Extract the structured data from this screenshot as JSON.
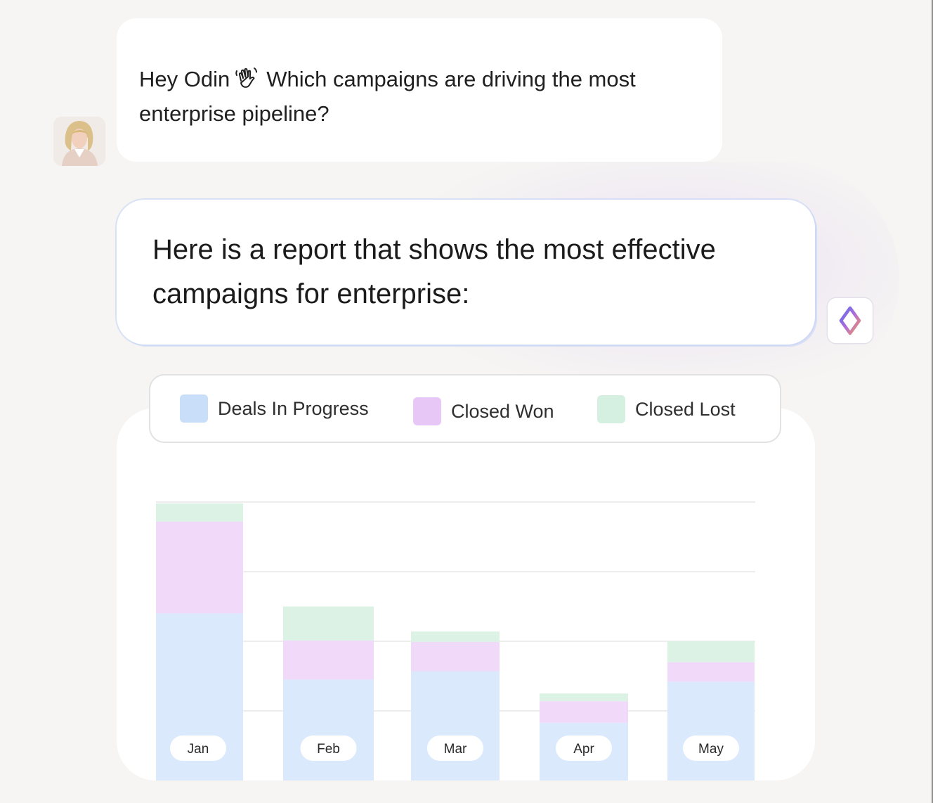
{
  "user_message": {
    "text_before": "Hey Odin",
    "text_after": "Which campaigns are driving the most enterprise pipeline?",
    "emoji_icon": "waving-hand-icon"
  },
  "assistant_message": {
    "text": "Here is a report that shows the most effective campaigns for enterprise:",
    "icon": "odin-diamond-logo-icon"
  },
  "chart_data": {
    "type": "bar",
    "stacked": true,
    "categories": [
      "Jan",
      "Feb",
      "Mar",
      "Apr",
      "May"
    ],
    "series": [
      {
        "name": "Deals In Progress",
        "color": "#dae9fb",
        "values": [
          2.4,
          1.45,
          1.57,
          0.83,
          1.42
        ]
      },
      {
        "name": "Closed Won",
        "color": "#f1d9fa",
        "values": [
          1.32,
          0.56,
          0.42,
          0.31,
          0.28
        ]
      },
      {
        "name": "Closed Lost",
        "color": "#dcf2e4",
        "values": [
          0.26,
          0.49,
          0.15,
          0.11,
          0.3
        ]
      }
    ],
    "ylim": [
      0,
      4
    ],
    "grid": true,
    "legend": "top"
  },
  "colors": {
    "deals_in_progress": "#dae9fb",
    "closed_won": "#f1d9fa",
    "closed_lost": "#dcf2e4",
    "legend_swatch_deals": "#c9def8",
    "legend_swatch_won": "#e6c7f5",
    "legend_swatch_lost": "#d5f0e0"
  }
}
